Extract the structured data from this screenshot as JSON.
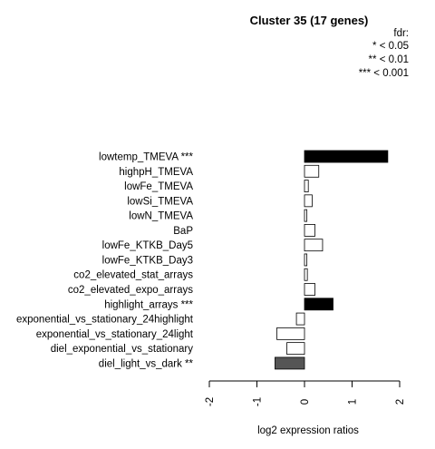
{
  "chart_data": {
    "type": "bar",
    "orientation": "horizontal",
    "title": "Cluster 35 (17 genes)",
    "xlabel": "log2 expression ratios",
    "ylabel": "",
    "xlim": [
      -2,
      2
    ],
    "xticks": [
      -2,
      -1,
      0,
      1,
      2
    ],
    "legend": {
      "title": "fdr:",
      "entries": [
        "* < 0.05",
        "** < 0.01",
        "*** < 0.001"
      ],
      "placement": "top-right"
    },
    "colors": {
      "p001": "#000000",
      "p01": "#555555",
      "none": "#ffffff",
      "stroke": "#000000"
    },
    "categories": [
      "lowtemp_TMEVA ***",
      "highpH_TMEVA",
      "lowFe_TMEVA",
      "lowSi_TMEVA",
      "lowN_TMEVA",
      "BaP",
      "lowFe_KTKB_Day5",
      "lowFe_KTKB_Day3",
      "co2_elevated_stat_arrays",
      "co2_elevated_expo_arrays",
      "highlight_arrays ***",
      "exponential_vs_stationary_24highlight",
      "exponential_vs_stationary_24light",
      "diel_exponential_vs_stationary",
      "diel_light_vs_dark **"
    ],
    "values": [
      1.75,
      0.3,
      0.08,
      0.16,
      0.05,
      0.22,
      0.38,
      0.05,
      0.06,
      0.22,
      0.6,
      -0.17,
      -0.58,
      -0.37,
      -0.62
    ],
    "significance": [
      "p001",
      "none",
      "none",
      "none",
      "none",
      "none",
      "none",
      "none",
      "none",
      "none",
      "p001",
      "none",
      "none",
      "none",
      "p01"
    ]
  }
}
